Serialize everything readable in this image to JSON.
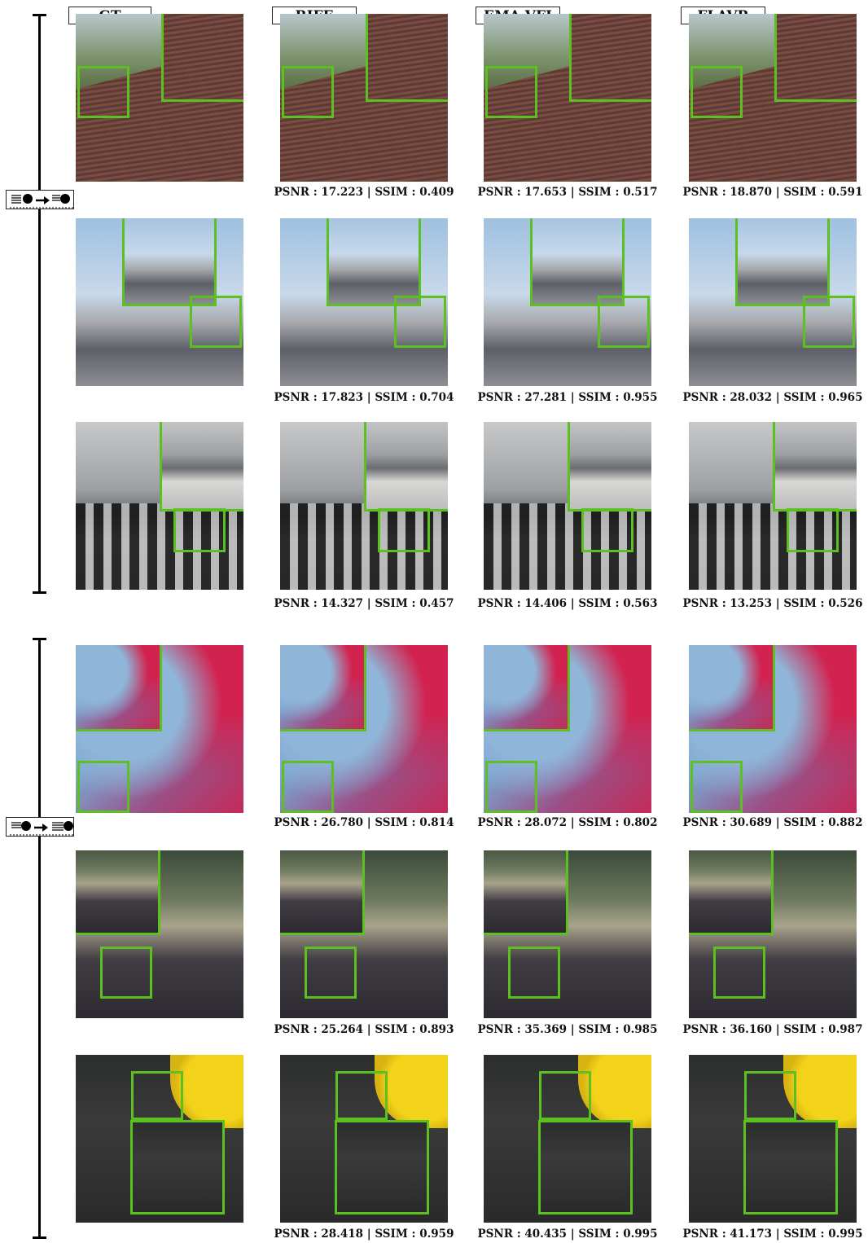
{
  "columns": [
    {
      "label": "GT"
    },
    {
      "label": "RIFE"
    },
    {
      "label": "EMA-VFI"
    },
    {
      "label": "FLAVR"
    }
  ],
  "groups": [
    {
      "icon": "object-motion-forward-icon",
      "rows": [
        {
          "metrics": [
            "",
            "PSNR : 17.223 | SSIM : 0.409",
            "PSNR : 17.653 | SSIM : 0.517",
            "PSNR : 18.870 | SSIM : 0.591"
          ]
        },
        {
          "metrics": [
            "",
            "PSNR : 17.823 | SSIM : 0.704",
            "PSNR : 27.281 | SSIM : 0.955",
            "PSNR : 28.032 | SSIM : 0.965"
          ]
        },
        {
          "metrics": [
            "",
            "PSNR : 14.327 | SSIM : 0.457",
            "PSNR : 14.406 | SSIM : 0.563",
            "PSNR : 13.253 | SSIM : 0.526"
          ]
        }
      ]
    },
    {
      "icon": "object-motion-reverse-icon",
      "rows": [
        {
          "metrics": [
            "",
            "PSNR : 26.780 | SSIM : 0.814",
            "PSNR : 28.072 | SSIM : 0.802",
            "PSNR : 30.689 | SSIM : 0.882"
          ]
        },
        {
          "metrics": [
            "",
            "PSNR : 25.264 | SSIM : 0.893",
            "PSNR : 35.369 | SSIM : 0.985",
            "PSNR : 36.160 | SSIM : 0.987"
          ]
        },
        {
          "metrics": [
            "",
            "PSNR : 28.418 | SSIM : 0.959",
            "PSNR : 40.435 | SSIM : 0.995",
            "PSNR : 41.173 | SSIM : 0.995"
          ]
        }
      ]
    }
  ],
  "colors": {
    "zoom_border": "#5cc021",
    "axis": "#000000"
  }
}
